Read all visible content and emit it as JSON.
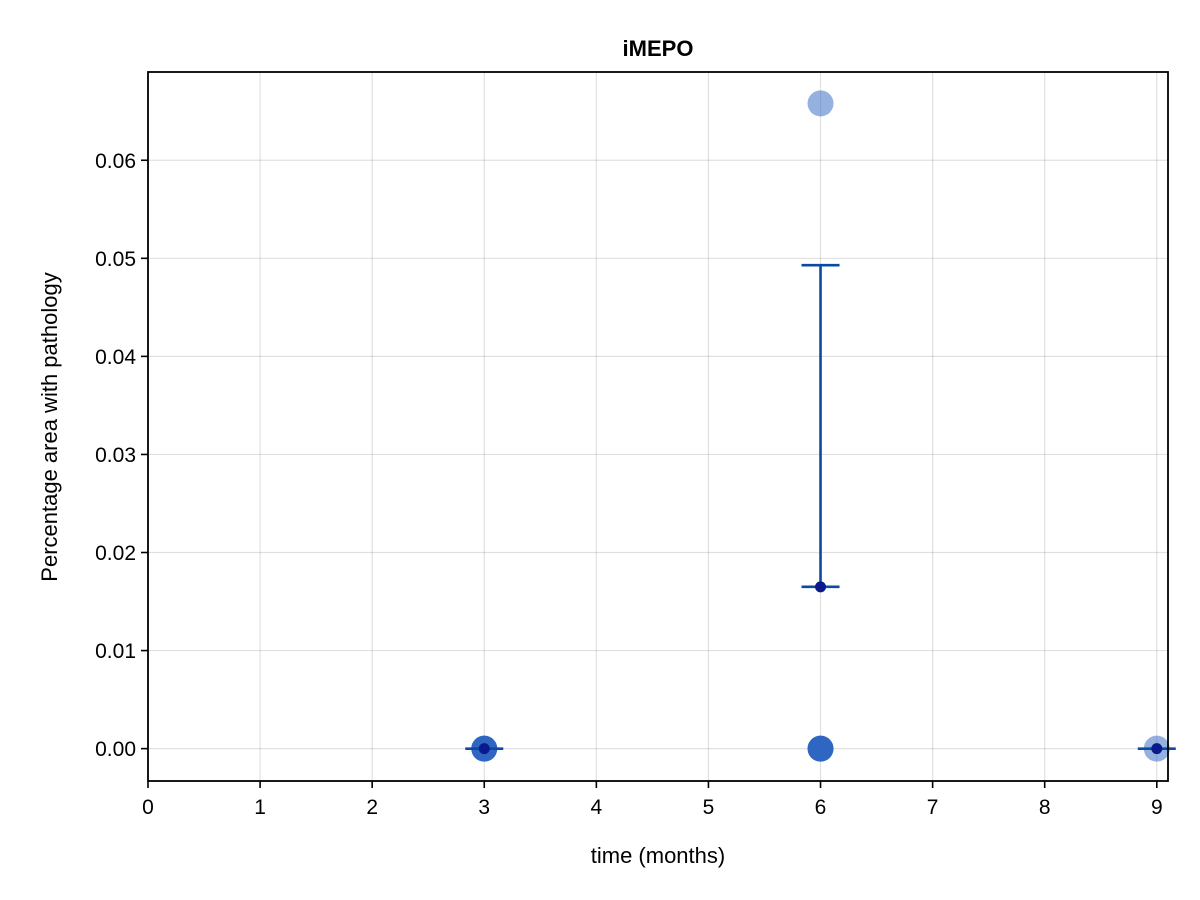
{
  "chart_data": {
    "type": "scatter",
    "title": "iMEPO",
    "xlabel": "time (months)",
    "ylabel": "Percentage area with pathology",
    "xlim": [
      0,
      9.1
    ],
    "ylim": [
      -0.0033,
      0.069
    ],
    "xticks": [
      0,
      1,
      2,
      3,
      4,
      5,
      6,
      7,
      8,
      9
    ],
    "xtick_labels": [
      "0",
      "1",
      "2",
      "3",
      "4",
      "5",
      "6",
      "7",
      "8",
      "9"
    ],
    "yticks": [
      0.0,
      0.01,
      0.02,
      0.03,
      0.04,
      0.05,
      0.06
    ],
    "ytick_labels": [
      "0.00",
      "0.01",
      "0.02",
      "0.03",
      "0.04",
      "0.05",
      "0.06"
    ],
    "grid": true,
    "legend": "none",
    "colors": {
      "individual_points": "#2a63bf",
      "mean_points": "#0a1a8c",
      "error_bars": "#0b4aa2"
    },
    "individual_points": [
      {
        "x": 3,
        "y": 0.0,
        "opacity": 0.95
      },
      {
        "x": 3,
        "y": 0.0,
        "opacity": 0.6
      },
      {
        "x": 6,
        "y": 0.0,
        "opacity": 0.95
      },
      {
        "x": 6,
        "y": 0.0,
        "opacity": 0.6
      },
      {
        "x": 6,
        "y": 0.0658,
        "opacity": 0.5
      },
      {
        "x": 9,
        "y": 0.0,
        "opacity": 0.5
      }
    ],
    "mean_points": [
      {
        "x": 3,
        "y": 0.0
      },
      {
        "x": 6,
        "y": 0.0165
      },
      {
        "x": 9,
        "y": 0.0
      }
    ],
    "error_bars": [
      {
        "x": 3,
        "low": 0.0,
        "high": 0.0
      },
      {
        "x": 6,
        "low": 0.0165,
        "high": 0.0493
      },
      {
        "x": 9,
        "low": 0.0,
        "high": 0.0
      }
    ]
  }
}
